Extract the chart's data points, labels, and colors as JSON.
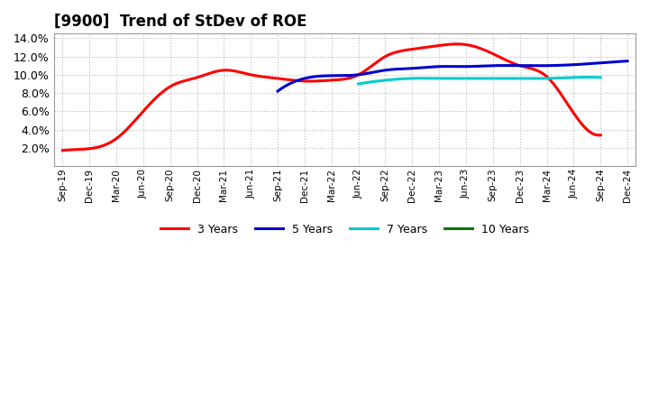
{
  "title": "[9900]  Trend of StDev of ROE",
  "ylim": [
    0.0,
    0.145
  ],
  "yticks": [
    0.02,
    0.04,
    0.06,
    0.08,
    0.1,
    0.12,
    0.14
  ],
  "background_color": "#ffffff",
  "grid_color": "#bbbbbb",
  "xtick_labels": [
    "Sep-19",
    "Dec-19",
    "Mar-20",
    "Jun-20",
    "Sep-20",
    "Dec-20",
    "Mar-21",
    "Jun-21",
    "Sep-21",
    "Dec-21",
    "Mar-22",
    "Jun-22",
    "Sep-22",
    "Dec-22",
    "Mar-23",
    "Jun-23",
    "Sep-23",
    "Dec-23",
    "Mar-24",
    "Jun-24",
    "Sep-24",
    "Dec-24"
  ],
  "series": [
    {
      "name": "3 Years",
      "color": "#ff0000",
      "x_indices": [
        0,
        1,
        2,
        3,
        4,
        5,
        6,
        7,
        8,
        9,
        10,
        11,
        12,
        13,
        14,
        15,
        16,
        17,
        18,
        19,
        20
      ],
      "values": [
        0.017,
        0.019,
        0.03,
        0.06,
        0.087,
        0.097,
        0.105,
        0.1,
        0.096,
        0.093,
        0.094,
        0.1,
        0.12,
        0.128,
        0.132,
        0.133,
        0.123,
        0.11,
        0.098,
        0.058,
        0.034
      ]
    },
    {
      "name": "5 Years",
      "color": "#0000cc",
      "x_indices": [
        8,
        9,
        10,
        11,
        12,
        13,
        14,
        15,
        16,
        17,
        18,
        19,
        20,
        21
      ],
      "values": [
        0.082,
        0.096,
        0.099,
        0.1,
        0.105,
        0.107,
        0.109,
        0.109,
        0.11,
        0.11,
        0.11,
        0.111,
        0.113,
        0.115
      ]
    },
    {
      "name": "7 Years",
      "color": "#00cccc",
      "x_indices": [
        11,
        12,
        13,
        14,
        15,
        16,
        17,
        18,
        19,
        20
      ],
      "values": [
        0.09,
        0.094,
        0.096,
        0.096,
        0.096,
        0.096,
        0.096,
        0.096,
        0.097,
        0.097
      ]
    },
    {
      "name": "10 Years",
      "color": "#007700",
      "x_indices": [],
      "values": []
    }
  ]
}
